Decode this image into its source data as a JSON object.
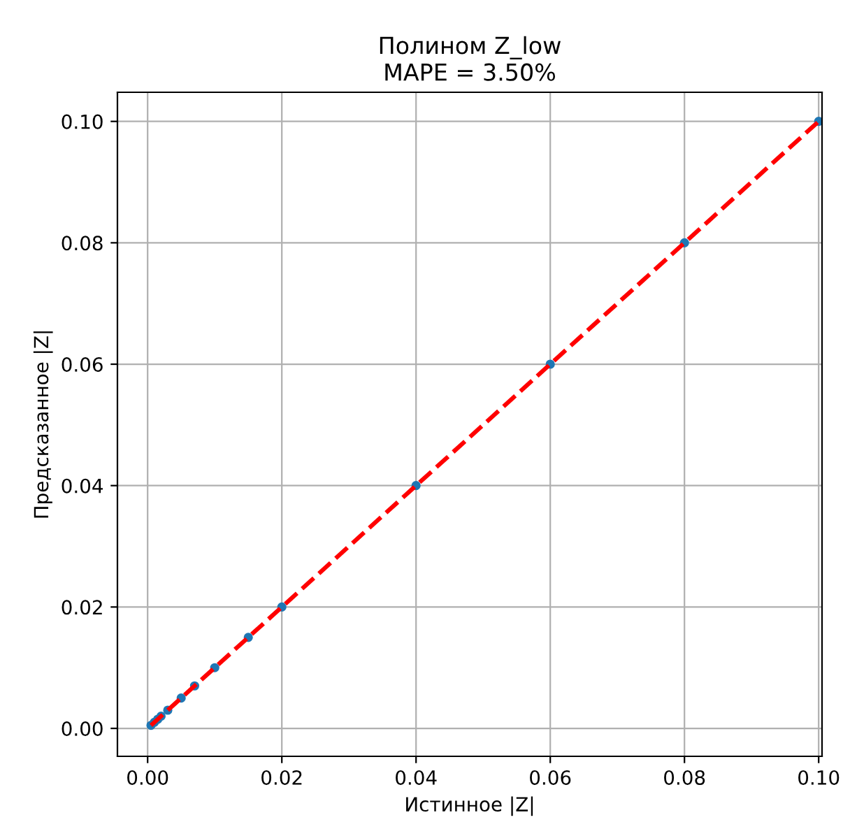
{
  "chart_data": {
    "type": "scatter",
    "title": "Полином Z_low\nMAPE = 3.50%",
    "xlabel": "Истинное |Z|",
    "ylabel": "Предсказанное |Z|",
    "xlim": [
      -0.0045,
      0.1005
    ],
    "ylim": [
      -0.0046,
      0.1048
    ],
    "xticks": [
      {
        "value": 0,
        "label": "0.00"
      },
      {
        "value": 0.02,
        "label": "0.02"
      },
      {
        "value": 0.04,
        "label": "0.04"
      },
      {
        "value": 0.06,
        "label": "0.06"
      },
      {
        "value": 0.08,
        "label": "0.08"
      },
      {
        "value": 0.1,
        "label": "0.10"
      }
    ],
    "yticks": [
      {
        "value": 0,
        "label": "0.00"
      },
      {
        "value": 0.02,
        "label": "0.02"
      },
      {
        "value": 0.04,
        "label": "0.04"
      },
      {
        "value": 0.06,
        "label": "0.06"
      },
      {
        "value": 0.08,
        "label": "0.08"
      },
      {
        "value": 0.1,
        "label": "0.10"
      }
    ],
    "grid": true,
    "series": [
      {
        "marker": "circle",
        "color": "#1f77b4",
        "x": [
          0.0005,
          0.001,
          0.0015,
          0.002,
          0.003,
          0.005,
          0.007,
          0.01,
          0.015,
          0.02,
          0.04,
          0.06,
          0.08,
          0.1
        ],
        "values": [
          0.0005,
          0.001,
          0.0015,
          0.002,
          0.003,
          0.005,
          0.007,
          0.01,
          0.015,
          0.02,
          0.04,
          0.06,
          0.08,
          0.1
        ]
      },
      {
        "type": "line",
        "color": "#ff0000",
        "line_style": "dashed",
        "marker": "none",
        "x": [
          0.0005,
          0.1
        ],
        "values": [
          0.0005,
          0.1
        ]
      }
    ]
  }
}
